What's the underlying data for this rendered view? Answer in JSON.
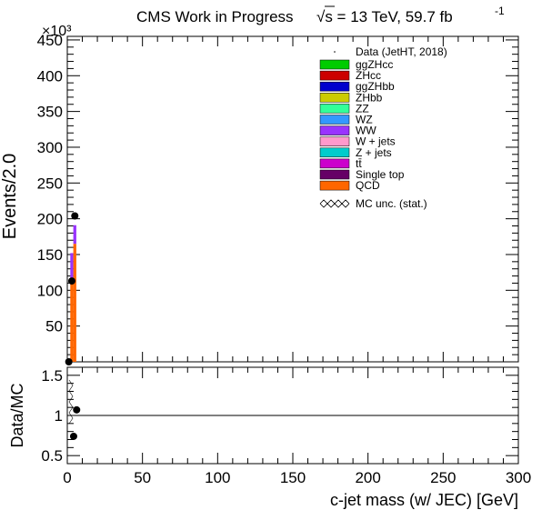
{
  "chart_data": [
    {
      "panel": "main",
      "type": "bar",
      "stacked": true,
      "title": "CMS Work in Progress",
      "energy_label": "√s = 13 TeV, 59.7 fb",
      "lumi_exponent": "-1",
      "ylabel": "Events/2.0",
      "y_multiplier": "×10³",
      "xlim": [
        0,
        300
      ],
      "ylim": [
        0,
        455
      ],
      "yticks": [
        50,
        100,
        150,
        200,
        250,
        300,
        350,
        400,
        450
      ],
      "bin_width": 2,
      "bin_edges": [
        2,
        4,
        6
      ],
      "series": [
        {
          "name": "QCD",
          "color": "#ff6600",
          "values": [
            112,
            165
          ]
        },
        {
          "name": "Single top",
          "color": "#660066",
          "values": [
            0,
            0
          ]
        },
        {
          "name": "tt̄",
          "color": "#cc00cc",
          "values": [
            0,
            0
          ]
        },
        {
          "name": "Z + jets",
          "color": "#00cccc",
          "values": [
            0,
            0
          ]
        },
        {
          "name": "W + jets",
          "color": "#ff99cc",
          "values": [
            0,
            0
          ]
        },
        {
          "name": "WW",
          "color": "#9933ff",
          "values": [
            40,
            26
          ]
        },
        {
          "name": "WZ",
          "color": "#3399ff",
          "values": [
            0,
            0
          ]
        },
        {
          "name": "ZZ",
          "color": "#33ff99",
          "values": [
            0,
            0
          ]
        },
        {
          "name": "ZHbb",
          "color": "#cccc00",
          "values": [
            0,
            0
          ]
        },
        {
          "name": "ggZHbb",
          "color": "#0000cc",
          "values": [
            0,
            0
          ]
        },
        {
          "name": "ZHcc",
          "color": "#cc0000",
          "values": [
            0,
            0
          ]
        },
        {
          "name": "ggZHcc",
          "color": "#00cc00",
          "values": [
            0,
            0
          ]
        }
      ],
      "data_points": {
        "name": "Data (JetHT, 2018)",
        "x": [
          1,
          3,
          5
        ],
        "y": [
          0,
          113,
          204
        ]
      },
      "mc_unc_label": "MC unc. (stat.)"
    },
    {
      "panel": "ratio",
      "type": "scatter",
      "ylabel": "Data/MC",
      "xlabel": "c-jet mass (w/ JEC) [GeV]",
      "xlim": [
        0,
        300
      ],
      "ylim": [
        0.4,
        1.6
      ],
      "xticks": [
        0,
        50,
        100,
        150,
        200,
        250,
        300
      ],
      "yticks": [
        0.5,
        1,
        1.5
      ],
      "reference_line": 1,
      "x": [
        3,
        5
      ],
      "y": [
        0.74,
        1.07
      ]
    }
  ]
}
